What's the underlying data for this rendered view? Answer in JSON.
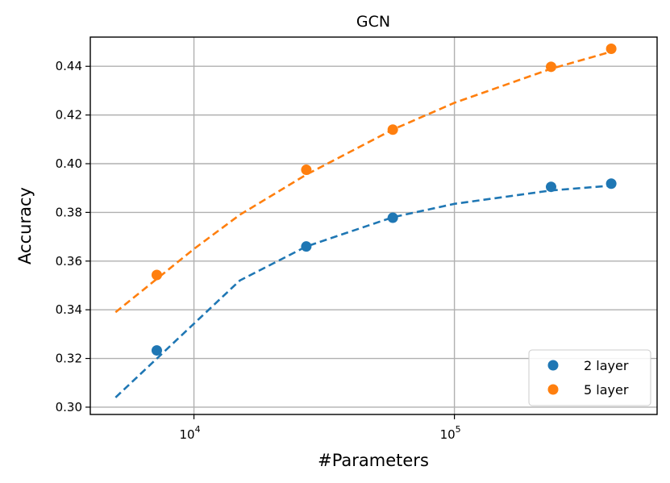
{
  "chart_data": {
    "type": "scatter",
    "title": "GCN",
    "xlabel": "#Parameters",
    "ylabel": "Accuracy",
    "x_scale": "log",
    "xlim": [
      4000,
      600000
    ],
    "ylim": [
      0.297,
      0.452
    ],
    "grid": true,
    "legend_position": "lower-right",
    "x_ticks": [
      {
        "value": 10000,
        "base": "10",
        "exp": "4"
      },
      {
        "value": 100000,
        "base": "10",
        "exp": "5"
      }
    ],
    "y_ticks": [
      {
        "value": 0.3,
        "label": "0.30"
      },
      {
        "value": 0.32,
        "label": "0.32"
      },
      {
        "value": 0.34,
        "label": "0.34"
      },
      {
        "value": 0.36,
        "label": "0.36"
      },
      {
        "value": 0.38,
        "label": "0.38"
      },
      {
        "value": 0.4,
        "label": "0.40"
      },
      {
        "value": 0.42,
        "label": "0.42"
      },
      {
        "value": 0.44,
        "label": "0.44"
      }
    ],
    "series": [
      {
        "name": "2 layer",
        "color": "#1f77b4",
        "x": [
          7200,
          27000,
          58000,
          235000,
          400000
        ],
        "y": [
          0.3233,
          0.366,
          0.3778,
          0.3905,
          0.3918
        ],
        "fit_x": [
          5000,
          15000,
          27000,
          58000,
          100000,
          235000,
          400000
        ],
        "fit_y": [
          0.304,
          0.352,
          0.366,
          0.378,
          0.3835,
          0.389,
          0.391
        ]
      },
      {
        "name": "5 layer",
        "color": "#ff7f0e",
        "x": [
          7200,
          27000,
          58000,
          235000,
          400000
        ],
        "y": [
          0.3543,
          0.3975,
          0.414,
          0.4398,
          0.4472
        ],
        "fit_x": [
          5000,
          10000,
          15000,
          27000,
          58000,
          100000,
          235000,
          400000
        ],
        "fit_y": [
          0.339,
          0.365,
          0.379,
          0.3955,
          0.414,
          0.425,
          0.439,
          0.446
        ]
      }
    ]
  }
}
